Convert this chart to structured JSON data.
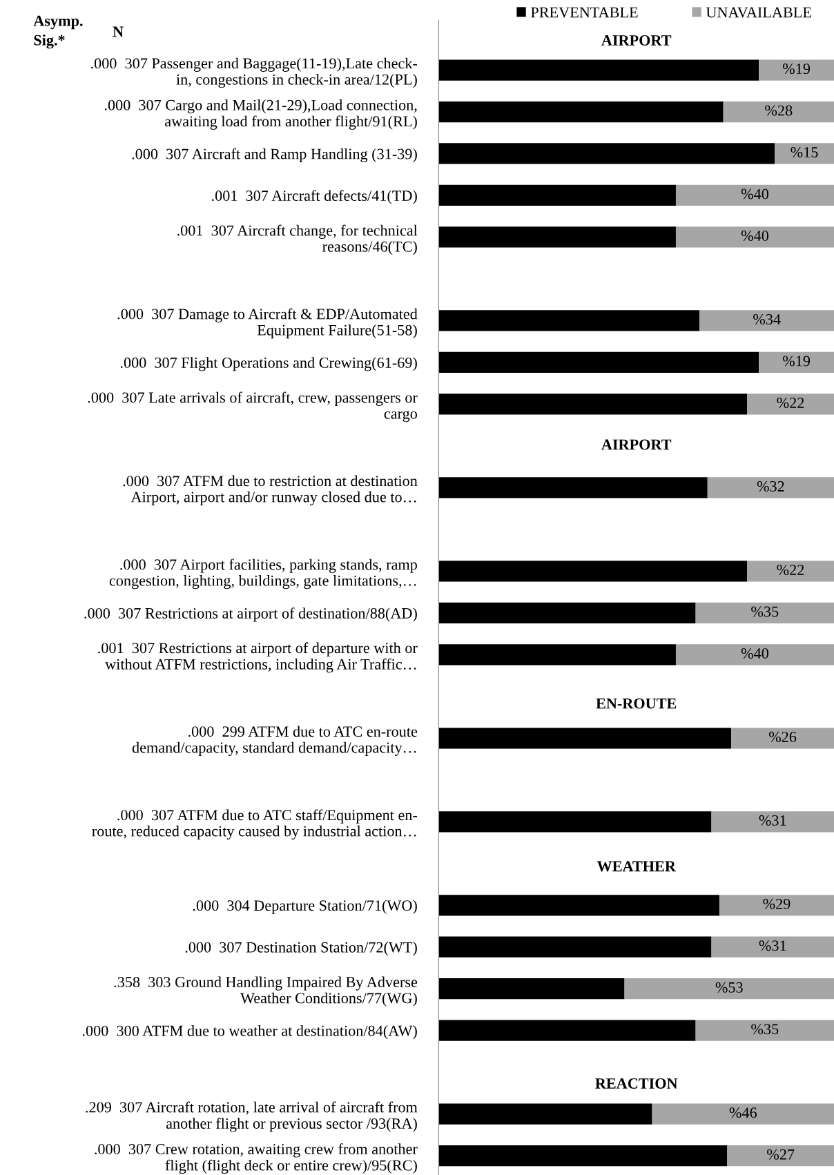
{
  "chart_data": {
    "type": "bar",
    "orientation": "horizontal",
    "stacked": true,
    "xlim": [
      0,
      100
    ],
    "tick_labels": "y",
    "legend": "top right",
    "grid": false,
    "categories": [
      ".000  307 Passenger and Baggage(11-19),Late check-\nin, congestions in check-in area/12(PL)",
      ".000  307 Cargo and Mail(21-29),Load connection,\nawaiting load from another flight/91(RL)",
      ".000  307 Aircraft and Ramp Handling (31-39)",
      ".001  307 Aircraft defects/41(TD)",
      ".001  307 Aircraft change, for technical\nreasons/46(TC)",
      null,
      ".000  307 Damage to Aircraft & EDP/Automated\nEquipment Failure(51-58)",
      ".000  307 Flight Operations and Crewing(61-69)",
      ".000  307 Late arrivals of aircraft, crew, passengers or\ncargo",
      null,
      ".000  307 ATFM due to restriction at destination\nAirport, airport and/or runway closed due to…",
      null,
      ".000  307 Airport facilities, parking stands, ramp\ncongestion, lighting, buildings, gate limitations,…",
      ".000  307 Restrictions at airport of destination/88(AD)",
      ".001  307 Restrictions at airport of departure with or\nwithout ATFM restrictions, including Air Traffic…",
      null,
      ".000  299 ATFM due to ATC en-route\ndemand/capacity, standard demand/capacity…",
      null,
      ".000  307 ATFM due to ATC staff/Equipment en-\nroute, reduced capacity caused by industrial action…",
      null,
      ".000  304 Departure Station/71(WO)",
      ".000  307 Destination Station/72(WT)",
      ".358  303 Ground Handling Impaired By Adverse\nWeather Conditions/77(WG)",
      ".000  300 ATFM due to weather at destination/84(AW)",
      null,
      ".209  307 Aircraft rotation, late arrival of aircraft from\nanother flight or previous sector /93(RA)",
      ".000  307 Crew rotation, awaiting crew from another\nflight (flight deck or entire crew)/95(RC)"
    ],
    "series": [
      {
        "name": "PREVENTABLE",
        "color": "#000000",
        "values": [
          81,
          72,
          85,
          60,
          60,
          null,
          66,
          81,
          78,
          null,
          68,
          null,
          78,
          65,
          60,
          null,
          74,
          null,
          69,
          null,
          71,
          69,
          47,
          65,
          null,
          54,
          73
        ]
      },
      {
        "name": "UNAVAILABLE",
        "color": "#a6a6a6",
        "values": [
          19,
          28,
          15,
          40,
          40,
          null,
          34,
          19,
          22,
          null,
          32,
          null,
          22,
          35,
          40,
          null,
          26,
          null,
          31,
          null,
          29,
          31,
          53,
          35,
          null,
          46,
          27
        ],
        "value_labels": [
          "%19",
          "%28",
          "%15",
          "%40",
          "%40",
          null,
          "%34",
          "%19",
          "%22",
          null,
          "%32",
          null,
          "%22",
          "%35",
          "%40",
          null,
          "%26",
          null,
          "%31",
          null,
          "%29",
          "%31",
          "%53",
          "%35",
          null,
          "%46",
          "%27"
        ]
      }
    ],
    "annotations": [
      "Asymp.\nSig.*",
      "N",
      "AIRPORT",
      "AIRPORT",
      "EN-ROUTE",
      "WEATHER",
      "REACTION"
    ]
  }
}
